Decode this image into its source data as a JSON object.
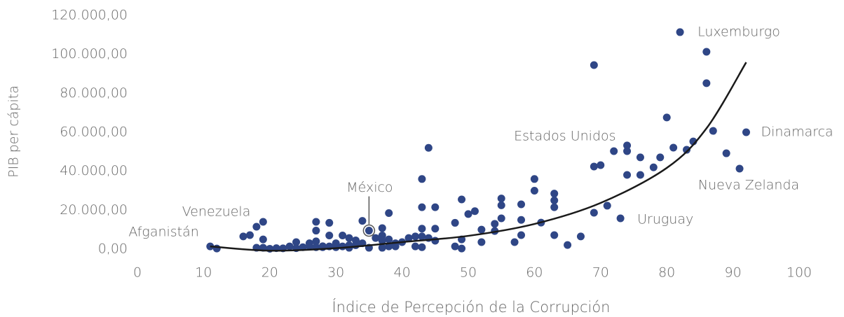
{
  "chart_data": {
    "type": "scatter",
    "x_label": "Índice de Percepción de la Corrupción",
    "y_label": "PIB per cápita",
    "color": "#2f4686",
    "x": [
      11,
      12,
      16,
      17,
      18,
      19,
      19,
      18,
      19,
      20,
      21,
      22,
      23,
      24,
      24,
      25,
      26,
      26,
      27,
      27,
      27,
      27,
      28,
      28,
      29,
      29,
      29,
      30,
      30,
      31,
      31,
      32,
      32,
      32,
      33,
      33,
      34,
      34,
      35,
      35,
      36,
      37,
      37,
      37,
      37,
      38,
      38,
      38,
      39,
      39,
      40,
      41,
      42,
      42,
      43,
      43,
      43,
      43,
      43,
      44,
      44,
      45,
      45,
      45,
      48,
      48,
      49,
      49,
      49,
      50,
      51,
      52,
      52,
      54,
      54,
      55,
      55,
      55,
      57,
      58,
      58,
      58,
      60,
      60,
      61,
      63,
      63,
      63,
      63,
      65,
      67,
      69,
      69,
      69,
      70,
      71,
      72,
      73,
      74,
      74,
      74,
      76,
      76,
      78,
      79,
      80,
      81,
      82,
      83,
      84,
      86,
      86,
      87,
      89,
      91,
      92
    ],
    "values": [
      1400,
      300,
      6500,
      7200,
      11500,
      14000,
      5000,
      700,
      700,
      200,
      500,
      400,
      1400,
      3600,
      500,
      1000,
      3000,
      1500,
      1000,
      4000,
      9500,
      14000,
      1500,
      1000,
      13500,
      7000,
      1400,
      3000,
      1000,
      7000,
      1400,
      5700,
      2000,
      700,
      4500,
      2000,
      14500,
      3000,
      700,
      9500,
      5700,
      10800,
      700,
      7000,
      4300,
      18500,
      5000,
      1400,
      3000,
      1400,
      3600,
      5700,
      6500,
      1400,
      6500,
      36000,
      21500,
      10500,
      1000,
      52000,
      5700,
      21500,
      10500,
      4300,
      1400,
      13500,
      25500,
      5000,
      300,
      18000,
      19500,
      10000,
      3600,
      9300,
      13000,
      26000,
      22500,
      15800,
      3600,
      23000,
      15000,
      7200,
      36000,
      30000,
      13600,
      28500,
      25000,
      21500,
      7200,
      2100,
      6500,
      94500,
      42400,
      18700,
      43100,
      22300,
      50300,
      15800,
      53200,
      50300,
      38100,
      47100,
      38100,
      42000,
      47100,
      67600,
      52100,
      111400,
      51000,
      55300,
      101300,
      85200,
      60700,
      49200,
      41300,
      60000
    ],
    "trendline": {
      "color": "#1a1a1a",
      "x": [
        11,
        20,
        30,
        40,
        50,
        60,
        70,
        80,
        86,
        92
      ],
      "values": [
        1400,
        -800,
        500,
        3600,
        6800,
        12900,
        23700,
        41700,
        62000,
        95900
      ]
    },
    "annotations": [
      {
        "text": "Luxemburgo",
        "x": 82,
        "y": 111400
      },
      {
        "text": "Estados Unidos",
        "x": 74,
        "y": 53200
      },
      {
        "text": "Dinamarca",
        "x": 92,
        "y": 60000
      },
      {
        "text": "Nueva Zelanda",
        "x": 91,
        "y": 41300
      },
      {
        "text": "Uruguay",
        "x": 73,
        "y": 15800
      },
      {
        "text": "México",
        "x": 35,
        "y": 9500
      },
      {
        "text": "Venezuela",
        "x": 19,
        "y": 14000
      },
      {
        "text": "Afganistán",
        "x": 11,
        "y": 1400
      }
    ],
    "xlim": [
      0,
      100
    ],
    "xticks": [
      0,
      10,
      20,
      30,
      40,
      50,
      60,
      70,
      80,
      90,
      100
    ],
    "ylim": [
      0,
      120000
    ],
    "yticks": [
      {
        "value": 0,
        "label": "0,00"
      },
      {
        "value": 20000,
        "label": "20.000,00"
      },
      {
        "value": 40000,
        "label": "40.000,00"
      },
      {
        "value": 60000,
        "label": "60.000,00"
      },
      {
        "value": 80000,
        "label": "80.000,00"
      },
      {
        "value": 100000,
        "label": "100.000,00"
      },
      {
        "value": 120000,
        "label": "120.000,00"
      }
    ],
    "grid": false
  }
}
